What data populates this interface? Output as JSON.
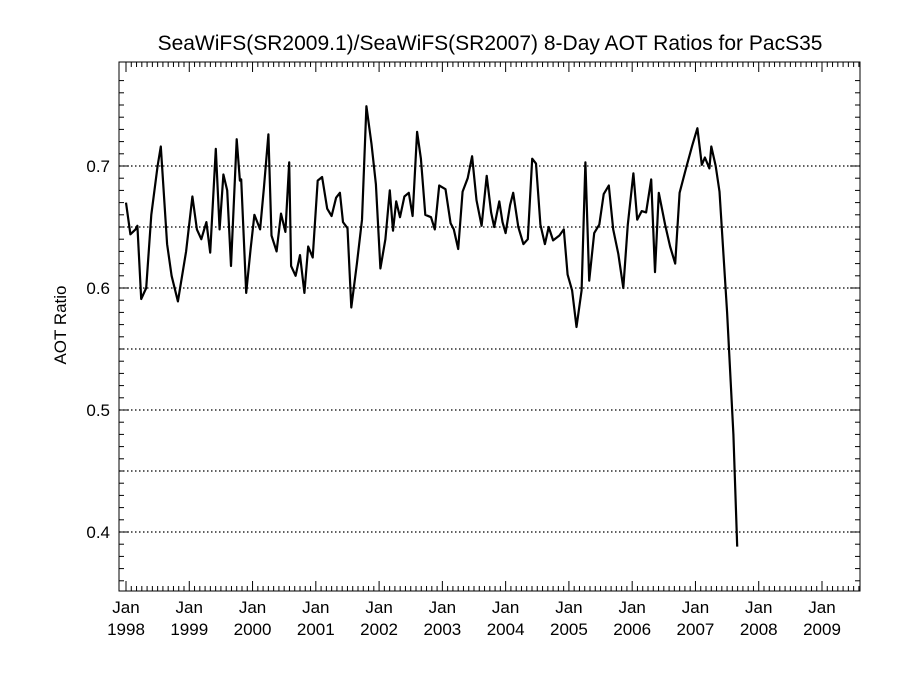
{
  "chart_data": {
    "type": "line",
    "title": "SeaWiFS(SR2009.1)/SeaWiFS(SR2007) 8-Day AOT Ratios for PacS35",
    "xlabel": "",
    "ylabel": "AOT Ratio",
    "xlim": [
      1998.0,
      2009.7
    ],
    "ylim": [
      0.35,
      0.78
    ],
    "grid": "horizontal-dotted",
    "y_gridlines": [
      0.4,
      0.45,
      0.5,
      0.55,
      0.6,
      0.65,
      0.7
    ],
    "y_ticks": [
      {
        "value": 0.4,
        "label": "0.4"
      },
      {
        "value": 0.5,
        "label": "0.5"
      },
      {
        "value": 0.6,
        "label": "0.6"
      },
      {
        "value": 0.7,
        "label": "0.7"
      }
    ],
    "x_ticks": [
      {
        "value": 1998,
        "month": "Jan",
        "year": "1998"
      },
      {
        "value": 1999,
        "month": "Jan",
        "year": "1999"
      },
      {
        "value": 2000,
        "month": "Jan",
        "year": "2000"
      },
      {
        "value": 2001,
        "month": "Jan",
        "year": "2001"
      },
      {
        "value": 2002,
        "month": "Jan",
        "year": "2002"
      },
      {
        "value": 2003,
        "month": "Jan",
        "year": "2003"
      },
      {
        "value": 2004,
        "month": "Jan",
        "year": "2004"
      },
      {
        "value": 2005,
        "month": "Jan",
        "year": "2005"
      },
      {
        "value": 2006,
        "month": "Jan",
        "year": "2006"
      },
      {
        "value": 2007,
        "month": "Jan",
        "year": "2007"
      },
      {
        "value": 2008,
        "month": "Jan",
        "year": "2008"
      },
      {
        "value": 2009,
        "month": "Jan",
        "year": "2009"
      }
    ],
    "series": [
      {
        "color": "#000000",
        "points": [
          [
            1998.0,
            0.67
          ],
          [
            1998.07,
            0.644
          ],
          [
            1998.15,
            0.648
          ],
          [
            1998.18,
            0.651
          ],
          [
            1998.24,
            0.591
          ],
          [
            1998.32,
            0.6
          ],
          [
            1998.4,
            0.66
          ],
          [
            1998.5,
            0.7
          ],
          [
            1998.55,
            0.716
          ],
          [
            1998.65,
            0.636
          ],
          [
            1998.72,
            0.61
          ],
          [
            1998.82,
            0.589
          ],
          [
            1998.95,
            0.63
          ],
          [
            1999.05,
            0.675
          ],
          [
            1999.12,
            0.648
          ],
          [
            1999.19,
            0.64
          ],
          [
            1999.27,
            0.654
          ],
          [
            1999.33,
            0.629
          ],
          [
            1999.42,
            0.714
          ],
          [
            1999.48,
            0.648
          ],
          [
            1999.54,
            0.693
          ],
          [
            1999.6,
            0.68
          ],
          [
            1999.66,
            0.618
          ],
          [
            1999.75,
            0.722
          ],
          [
            1999.8,
            0.688
          ],
          [
            1999.82,
            0.689
          ],
          [
            1999.9,
            0.596
          ],
          [
            1999.97,
            0.632
          ],
          [
            2000.03,
            0.66
          ],
          [
            2000.12,
            0.648
          ],
          [
            2000.18,
            0.682
          ],
          [
            2000.25,
            0.726
          ],
          [
            2000.3,
            0.643
          ],
          [
            2000.38,
            0.63
          ],
          [
            2000.45,
            0.661
          ],
          [
            2000.52,
            0.646
          ],
          [
            2000.58,
            0.703
          ],
          [
            2000.61,
            0.618
          ],
          [
            2000.68,
            0.61
          ],
          [
            2000.75,
            0.627
          ],
          [
            2000.82,
            0.596
          ],
          [
            2000.88,
            0.634
          ],
          [
            2000.95,
            0.625
          ],
          [
            2001.03,
            0.688
          ],
          [
            2001.1,
            0.691
          ],
          [
            2001.18,
            0.665
          ],
          [
            2001.25,
            0.659
          ],
          [
            2001.32,
            0.674
          ],
          [
            2001.38,
            0.678
          ],
          [
            2001.43,
            0.654
          ],
          [
            2001.5,
            0.649
          ],
          [
            2001.56,
            0.584
          ],
          [
            2001.65,
            0.62
          ],
          [
            2001.73,
            0.656
          ],
          [
            2001.8,
            0.749
          ],
          [
            2001.88,
            0.718
          ],
          [
            2001.95,
            0.685
          ],
          [
            2002.02,
            0.616
          ],
          [
            2002.1,
            0.64
          ],
          [
            2002.17,
            0.68
          ],
          [
            2002.22,
            0.647
          ],
          [
            2002.27,
            0.671
          ],
          [
            2002.33,
            0.658
          ],
          [
            2002.4,
            0.675
          ],
          [
            2002.47,
            0.678
          ],
          [
            2002.53,
            0.659
          ],
          [
            2002.6,
            0.728
          ],
          [
            2002.66,
            0.706
          ],
          [
            2002.73,
            0.66
          ],
          [
            2002.82,
            0.658
          ],
          [
            2002.88,
            0.648
          ],
          [
            2002.95,
            0.684
          ],
          [
            2003.05,
            0.681
          ],
          [
            2003.13,
            0.653
          ],
          [
            2003.18,
            0.648
          ],
          [
            2003.25,
            0.632
          ],
          [
            2003.32,
            0.679
          ],
          [
            2003.4,
            0.69
          ],
          [
            2003.47,
            0.708
          ],
          [
            2003.54,
            0.672
          ],
          [
            2003.62,
            0.651
          ],
          [
            2003.7,
            0.692
          ],
          [
            2003.77,
            0.662
          ],
          [
            2003.82,
            0.65
          ],
          [
            2003.9,
            0.671
          ],
          [
            2003.95,
            0.654
          ],
          [
            2004.0,
            0.645
          ],
          [
            2004.07,
            0.668
          ],
          [
            2004.12,
            0.678
          ],
          [
            2004.2,
            0.65
          ],
          [
            2004.28,
            0.636
          ],
          [
            2004.35,
            0.64
          ],
          [
            2004.42,
            0.706
          ],
          [
            2004.48,
            0.702
          ],
          [
            2004.55,
            0.652
          ],
          [
            2004.62,
            0.636
          ],
          [
            2004.68,
            0.65
          ],
          [
            2004.75,
            0.639
          ],
          [
            2004.85,
            0.643
          ],
          [
            2004.92,
            0.648
          ],
          [
            2004.98,
            0.611
          ],
          [
            2005.05,
            0.598
          ],
          [
            2005.12,
            0.568
          ],
          [
            2005.2,
            0.598
          ],
          [
            2005.26,
            0.703
          ],
          [
            2005.32,
            0.606
          ],
          [
            2005.4,
            0.645
          ],
          [
            2005.48,
            0.652
          ],
          [
            2005.55,
            0.677
          ],
          [
            2005.63,
            0.684
          ],
          [
            2005.7,
            0.648
          ],
          [
            2005.78,
            0.628
          ],
          [
            2005.86,
            0.6
          ],
          [
            2005.93,
            0.652
          ],
          [
            2006.02,
            0.694
          ],
          [
            2006.08,
            0.656
          ],
          [
            2006.15,
            0.663
          ],
          [
            2006.22,
            0.662
          ],
          [
            2006.3,
            0.689
          ],
          [
            2006.36,
            0.613
          ],
          [
            2006.42,
            0.678
          ],
          [
            2006.52,
            0.652
          ],
          [
            2006.6,
            0.634
          ],
          [
            2006.68,
            0.62
          ],
          [
            2006.75,
            0.678
          ],
          [
            2006.85,
            0.698
          ],
          [
            2006.95,
            0.717
          ],
          [
            2007.03,
            0.731
          ],
          [
            2007.1,
            0.701
          ],
          [
            2007.15,
            0.707
          ],
          [
            2007.22,
            0.698
          ],
          [
            2007.25,
            0.716
          ],
          [
            2007.32,
            0.7
          ],
          [
            2007.38,
            0.679
          ],
          [
            2007.5,
            0.58
          ],
          [
            2007.6,
            0.48
          ],
          [
            2007.66,
            0.388
          ]
        ]
      }
    ]
  }
}
